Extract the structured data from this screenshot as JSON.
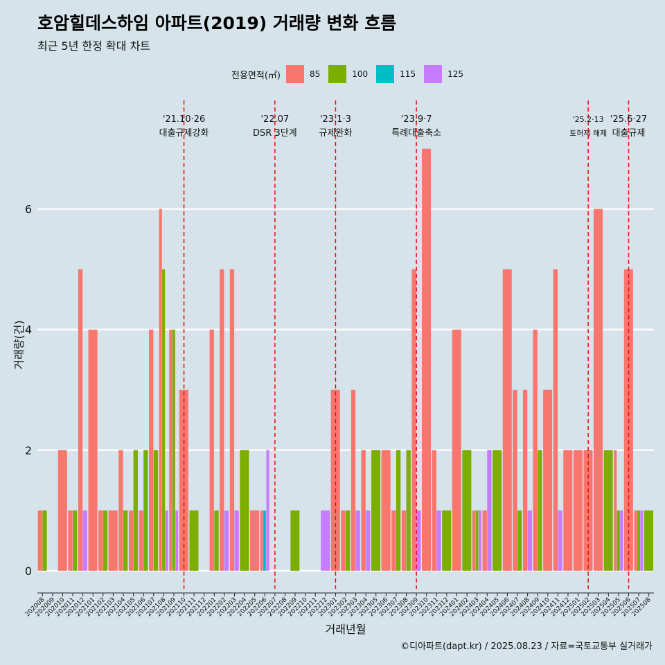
{
  "title": "호암힐데스하임 아파트(2019) 거래량 변화 흐름",
  "subtitle": "최근 5년 한정 확대 차트",
  "caption": "©디아파트(dapt.kr) / 2025.08.23 / 자료=국토교통부 실거래가",
  "legend": {
    "title": "전용면적(㎡)",
    "items": [
      {
        "label": "85",
        "color": "#f8766d"
      },
      {
        "label": "100",
        "color": "#7cae00"
      },
      {
        "label": "115",
        "color": "#00bfc4"
      },
      {
        "label": "125",
        "color": "#c77cff"
      }
    ]
  },
  "chart_data": {
    "type": "bar",
    "title": "호암힐데스하임 아파트(2019) 거래량 변화 흐름",
    "subtitle": "최근 5년 한정 확대 차트",
    "xlabel": "거래년월",
    "ylabel": "거래량(건)",
    "ylim": [
      -0.3,
      7.8
    ],
    "yticks": [
      0,
      2,
      4,
      6
    ],
    "grid": true,
    "legend_position": "top",
    "categories": [
      "202008",
      "202009",
      "202010",
      "202011",
      "202012",
      "202101",
      "202102",
      "202103",
      "202104",
      "202105",
      "202106",
      "202107",
      "202108",
      "202109",
      "202110",
      "202111",
      "202112",
      "202201",
      "202202",
      "202203",
      "202204",
      "202205",
      "202206",
      "202207",
      "202208",
      "202209",
      "202210",
      "202211",
      "202212",
      "202301",
      "202302",
      "202303",
      "202304",
      "202305",
      "202306",
      "202307",
      "202308",
      "202309",
      "202310",
      "202311",
      "202312",
      "202401",
      "202402",
      "202403",
      "202404",
      "202405",
      "202406",
      "202407",
      "202408",
      "202409",
      "202410",
      "202411",
      "202412",
      "202501",
      "202502",
      "202503",
      "202504",
      "202505",
      "202506",
      "202507",
      "202508"
    ],
    "series": [
      {
        "name": "85",
        "color": "#f8766d",
        "values": [
          1,
          0,
          2,
          1,
          5,
          4,
          1,
          1,
          2,
          1,
          1,
          4,
          6,
          4,
          3,
          0,
          0,
          4,
          5,
          5,
          0,
          1,
          1,
          0,
          0,
          0,
          0,
          0,
          0,
          3,
          1,
          3,
          2,
          0,
          2,
          1,
          1,
          5,
          7,
          2,
          0,
          4,
          0,
          1,
          1,
          0,
          5,
          3,
          3,
          4,
          3,
          5,
          2,
          2,
          2,
          6,
          0,
          2,
          5,
          1,
          0
        ]
      },
      {
        "name": "100",
        "color": "#7cae00",
        "values": [
          1,
          0,
          0,
          1,
          0,
          0,
          1,
          0,
          1,
          2,
          2,
          2,
          5,
          4,
          0,
          1,
          0,
          1,
          0,
          0,
          2,
          0,
          0,
          0,
          0,
          1,
          0,
          0,
          0,
          0,
          1,
          0,
          0,
          2,
          0,
          2,
          2,
          0,
          0,
          0,
          1,
          0,
          2,
          1,
          0,
          2,
          0,
          1,
          0,
          2,
          0,
          0,
          0,
          0,
          0,
          0,
          2,
          1,
          0,
          1,
          1
        ]
      },
      {
        "name": "115",
        "color": "#00bfc4",
        "values": [
          0,
          0,
          0,
          0,
          0,
          0,
          0,
          0,
          0,
          0,
          0,
          0,
          0,
          0,
          0,
          0,
          0,
          0,
          0,
          0,
          0,
          0,
          1,
          0,
          0,
          0,
          0,
          0,
          0,
          0,
          0,
          0,
          0,
          0,
          0,
          0,
          0,
          0,
          0,
          0,
          0,
          0,
          0,
          0,
          0,
          0,
          0,
          0,
          0,
          0,
          0,
          0,
          0,
          0,
          0,
          0,
          0,
          0,
          0,
          0,
          0
        ]
      },
      {
        "name": "125",
        "color": "#c77cff",
        "values": [
          0,
          0,
          0,
          0,
          1,
          0,
          0,
          0,
          0,
          0,
          0,
          0,
          1,
          1,
          0,
          0,
          0,
          0,
          1,
          1,
          0,
          0,
          2,
          0,
          0,
          0,
          0,
          0,
          1,
          0,
          0,
          1,
          1,
          0,
          0,
          0,
          0,
          1,
          0,
          1,
          0,
          0,
          0,
          1,
          2,
          0,
          0,
          0,
          1,
          0,
          0,
          1,
          0,
          0,
          0,
          0,
          0,
          1,
          0,
          1,
          0
        ]
      }
    ],
    "events": [
      {
        "date": "'21.10·26",
        "label": "대출규제강화",
        "index": 14
      },
      {
        "date": "'22.07",
        "label": "DSR 3단계",
        "index": 23
      },
      {
        "date": "'23.1·3",
        "label": "규제완화",
        "index": 29
      },
      {
        "date": "'23.9·7",
        "label": "특례대출축소",
        "index": 37
      },
      {
        "date": "'25.2·13",
        "label": "토허제 해제",
        "index": 54,
        "small": true
      },
      {
        "date": "'25.6·27",
        "label": "대출규제",
        "index": 58
      }
    ]
  }
}
